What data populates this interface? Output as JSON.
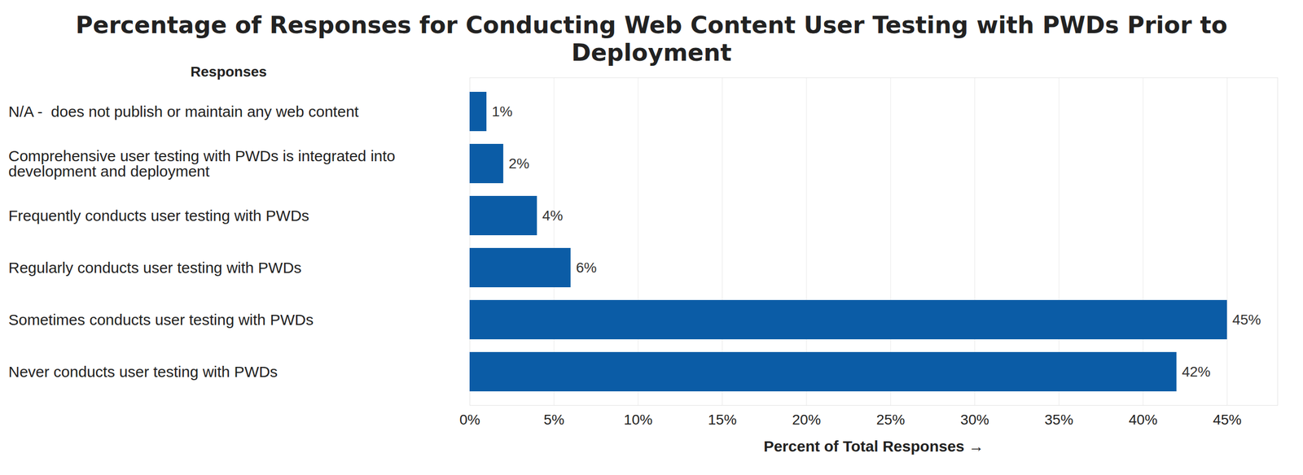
{
  "chart_data": {
    "type": "bar",
    "orientation": "horizontal",
    "title": "Percentage of Responses for Conducting Web Content User Testing with PWDs Prior to Deployment",
    "xlabel": "Percent of Total Responses",
    "ylabel": "Responses",
    "categories": [
      "N/A -  does not publish or maintain any web content",
      "Comprehensive user testing with PWDs is integrated into development and deployment",
      "Frequently conducts user testing with PWDs",
      "Regularly conducts user testing with PWDs",
      "Sometimes conducts user testing with PWDs",
      "Never conducts user testing with PWDs"
    ],
    "values": [
      1,
      2,
      4,
      6,
      45,
      42
    ],
    "value_labels": [
      "1%",
      "2%",
      "4%",
      "6%",
      "45%",
      "42%"
    ],
    "color": "#0b5ca6",
    "xlim": [
      0,
      48
    ],
    "xticks": [
      {
        "value": 0,
        "label": "0%"
      },
      {
        "value": 5,
        "label": "5%"
      },
      {
        "value": 10,
        "label": "10%"
      },
      {
        "value": 15,
        "label": "15%"
      },
      {
        "value": 20,
        "label": "20%"
      },
      {
        "value": 25,
        "label": "25%"
      },
      {
        "value": 30,
        "label": "30%"
      },
      {
        "value": 35,
        "label": "35%"
      },
      {
        "value": 40,
        "label": "40%"
      },
      {
        "value": 45,
        "label": "45%"
      }
    ],
    "grid": true,
    "data_labels": true
  }
}
